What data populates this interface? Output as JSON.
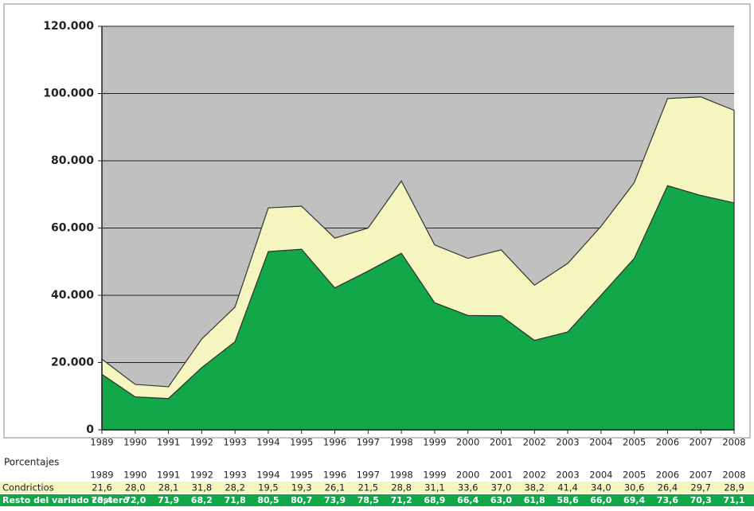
{
  "chart_data": {
    "type": "stacked_area",
    "categories": [
      "1989",
      "1990",
      "1991",
      "1992",
      "1993",
      "1994",
      "1995",
      "1996",
      "1997",
      "1998",
      "1999",
      "2000",
      "2001",
      "2002",
      "2003",
      "2004",
      "2005",
      "2006",
      "2007",
      "2008"
    ],
    "series": [
      {
        "name": "Resto del variado costero",
        "color": "#12a84a",
        "values": [
          16500,
          9800,
          9300,
          18500,
          26200,
          53000,
          53700,
          42200,
          47200,
          52500,
          37800,
          34000,
          33900,
          26600,
          29100,
          40000,
          51000,
          72600,
          69700,
          67500
        ]
      },
      {
        "name": "Condrictios",
        "color": "#f5f5c0",
        "values": [
          4500,
          3700,
          3500,
          8500,
          10300,
          13000,
          12800,
          14800,
          12800,
          21500,
          17200,
          17000,
          19600,
          16400,
          20400,
          20500,
          22500,
          25900,
          29300,
          27500
        ]
      }
    ],
    "ylim": [
      0,
      120000
    ],
    "yticks": [
      0,
      {
        "value": 20000,
        "label": "20.000"
      },
      {
        "value": 40000,
        "label": "40.000"
      },
      {
        "value": 60000,
        "label": "60.000"
      },
      {
        "value": 80000,
        "label": "80.000"
      },
      {
        "value": 100000,
        "label": "100.000"
      },
      {
        "value": 120000,
        "label": "120.000"
      }
    ],
    "grid": true,
    "plot_background": "#c0c0c0",
    "table": {
      "title": "Porcentajes",
      "rows": [
        [
          "21,6",
          "28,0",
          "28,1",
          "31,8",
          "28,2",
          "19,5",
          "19,3",
          "26,1",
          "21,5",
          "28,8",
          "31,1",
          "33,6",
          "37,0",
          "38,2",
          "41,4",
          "34,0",
          "30,6",
          "26,4",
          "29,7",
          "28,9"
        ],
        [
          "78,4",
          "72,0",
          "71,9",
          "68,2",
          "71,8",
          "80,5",
          "80,7",
          "73,9",
          "78,5",
          "71,2",
          "68,9",
          "66,4",
          "63,0",
          "61,8",
          "58,6",
          "66,0",
          "69,4",
          "73,6",
          "70,3",
          "71,1"
        ]
      ]
    }
  }
}
